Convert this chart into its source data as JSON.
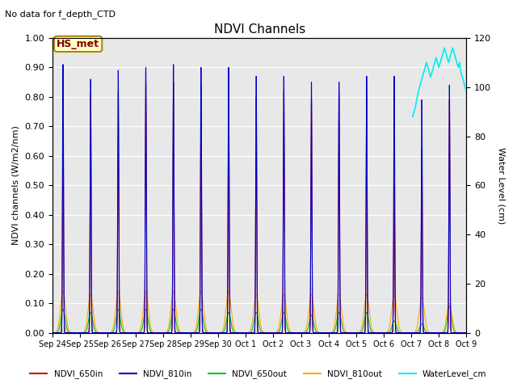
{
  "title": "NDVI Channels",
  "subtitle": "No data for f_depth_CTD",
  "ylabel_left": "NDVI channels (W/m2/nm)",
  "ylabel_right": "Water Level (cm)",
  "ylim_left": [
    0.0,
    1.0
  ],
  "ylim_right": [
    0,
    120
  ],
  "annotation": "HS_met",
  "bg_color": "#e8e8e8",
  "colors": {
    "NDVI_650in": "#cc0000",
    "NDVI_810in": "#0000cc",
    "NDVI_650out": "#00cc00",
    "NDVI_810out": "#ffaa00",
    "WaterLevel_cm": "#00eeee"
  },
  "x_tick_labels": [
    "Sep 24",
    "Sep 25",
    "Sep 26",
    "Sep 27",
    "Sep 28",
    "Sep 29",
    "Sep 30",
    "Oct 1",
    "Oct 2",
    "Oct 3",
    "Oct 4",
    "Oct 5",
    "Oct 6",
    "Oct 7",
    "Oct 8",
    "Oct 9"
  ],
  "ndvi_810in_peaks": [
    0.91,
    0.86,
    0.89,
    0.9,
    0.91,
    0.9,
    0.9,
    0.87,
    0.87,
    0.85,
    0.85,
    0.87,
    0.87,
    0.79,
    0.84
  ],
  "ndvi_650in_peaks": [
    0.8,
    0.81,
    0.82,
    0.85,
    0.85,
    0.84,
    0.82,
    0.8,
    0.82,
    0.79,
    0.81,
    0.8,
    0.5,
    0.62,
    0.79
  ],
  "ndvi_810out_peaks": [
    0.14,
    0.13,
    0.14,
    0.14,
    0.14,
    0.14,
    0.14,
    0.13,
    0.13,
    0.13,
    0.13,
    0.13,
    0.13,
    0.12,
    0.1
  ],
  "ndvi_650out_peaks": [
    0.08,
    0.07,
    0.08,
    0.08,
    0.08,
    0.08,
    0.07,
    0.07,
    0.07,
    0.06,
    0.07,
    0.07,
    0.04,
    0.03,
    0.09
  ],
  "water_level_x": [
    13.05,
    13.1,
    13.15,
    13.2,
    13.25,
    13.3,
    13.35,
    13.4,
    13.45,
    13.5,
    13.55,
    13.6,
    13.65,
    13.7,
    13.75,
    13.8,
    13.85,
    13.9,
    13.95,
    14.0,
    14.05,
    14.1,
    14.15,
    14.2,
    14.25,
    14.3,
    14.35,
    14.4,
    14.45,
    14.5,
    14.55,
    14.6,
    14.65,
    14.7,
    14.75,
    14.8,
    14.85,
    14.9,
    14.95,
    15.0
  ],
  "water_level_y": [
    88,
    90,
    92,
    95,
    98,
    100,
    102,
    104,
    106,
    108,
    110,
    108,
    106,
    104,
    106,
    108,
    110,
    112,
    110,
    108,
    110,
    112,
    114,
    116,
    114,
    112,
    110,
    112,
    114,
    116,
    114,
    112,
    110,
    108,
    110,
    106,
    104,
    102,
    100,
    98
  ]
}
